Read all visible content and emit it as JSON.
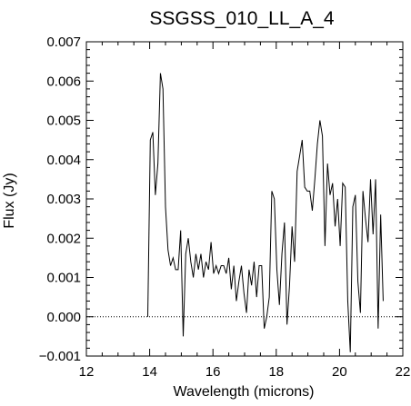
{
  "chart_data": {
    "type": "line",
    "title": "SSGSS_010_LL_A_4",
    "xlabel": "Wavelength (microns)",
    "ylabel": "Flux (Jy)",
    "xlim": [
      12,
      22
    ],
    "ylim": [
      -0.001,
      0.007
    ],
    "xticks": [
      12,
      14,
      16,
      18,
      20,
      22
    ],
    "xtick_labels": [
      "12",
      "14",
      "16",
      "18",
      "20",
      "22"
    ],
    "yticks": [
      -0.001,
      0.0,
      0.001,
      0.002,
      0.003,
      0.004,
      0.005,
      0.006,
      0.007
    ],
    "ytick_labels": [
      "−0.001",
      "0.000",
      "0.001",
      "0.002",
      "0.003",
      "0.004",
      "0.005",
      "0.006",
      "0.007"
    ],
    "reference_line": {
      "y": 0.0,
      "style": "dotted"
    },
    "grid": false,
    "line_color": "#000000",
    "series": [
      {
        "x": [
          13.94,
          14.02,
          14.1,
          14.18,
          14.26,
          14.34,
          14.42,
          14.5,
          14.58,
          14.66,
          14.74,
          14.82,
          14.9,
          14.98,
          15.06,
          15.14,
          15.22,
          15.3,
          15.38,
          15.46,
          15.54,
          15.62,
          15.7,
          15.78,
          15.86,
          15.94,
          16.02,
          16.1,
          16.18,
          16.26,
          16.34,
          16.42,
          16.5,
          16.58,
          16.66,
          16.74,
          16.82,
          16.9,
          16.98,
          17.06,
          17.14,
          17.22,
          17.3,
          17.38,
          17.46,
          17.54,
          17.62,
          17.7,
          17.78,
          17.86,
          17.94,
          18.02,
          18.1,
          18.18,
          18.26,
          18.34,
          18.42,
          18.5,
          18.58,
          18.66,
          18.74,
          18.82,
          18.9,
          18.98,
          19.06,
          19.14,
          19.22,
          19.3,
          19.38,
          19.46,
          19.54,
          19.62,
          19.7,
          19.78,
          19.86,
          19.94,
          20.02,
          20.1,
          20.18,
          20.26,
          20.34,
          20.42,
          20.5,
          20.58,
          20.66,
          20.74,
          20.82,
          20.9,
          20.98,
          21.06,
          21.14,
          21.22,
          21.3,
          21.38
        ],
        "y": [
          0.0,
          0.0045,
          0.0047,
          0.0031,
          0.0039,
          0.0062,
          0.0058,
          0.0028,
          0.0017,
          0.0013,
          0.0015,
          0.0012,
          0.0012,
          0.0022,
          -0.0005,
          0.0016,
          0.002,
          0.0014,
          0.001,
          0.0016,
          0.0012,
          0.0016,
          0.001,
          0.0014,
          0.0012,
          0.0019,
          0.0011,
          0.0013,
          0.0011,
          0.0013,
          0.0013,
          0.0011,
          0.0015,
          0.0007,
          0.0013,
          0.0004,
          0.0009,
          0.0013,
          0.0006,
          0.0001,
          0.0012,
          0.0008,
          0.0014,
          0.0005,
          0.0013,
          0.0013,
          -0.0003,
          0.0,
          0.0005,
          0.0032,
          0.003,
          0.0012,
          0.0003,
          0.0016,
          0.0024,
          -0.0002,
          0.0008,
          0.0023,
          0.0014,
          0.0037,
          0.0041,
          0.0045,
          0.0033,
          0.0032,
          0.0032,
          0.0027,
          0.0035,
          0.0044,
          0.005,
          0.0046,
          0.0018,
          0.0039,
          0.0031,
          0.0034,
          0.0023,
          0.003,
          0.0018,
          0.0034,
          0.0033,
          0.0004,
          -0.0009,
          0.0028,
          0.0031,
          0.0009,
          0.0001,
          0.0032,
          0.0025,
          0.0019,
          0.0035,
          0.0021,
          0.0035,
          -0.0003,
          0.0026,
          0.0004
        ]
      }
    ]
  }
}
